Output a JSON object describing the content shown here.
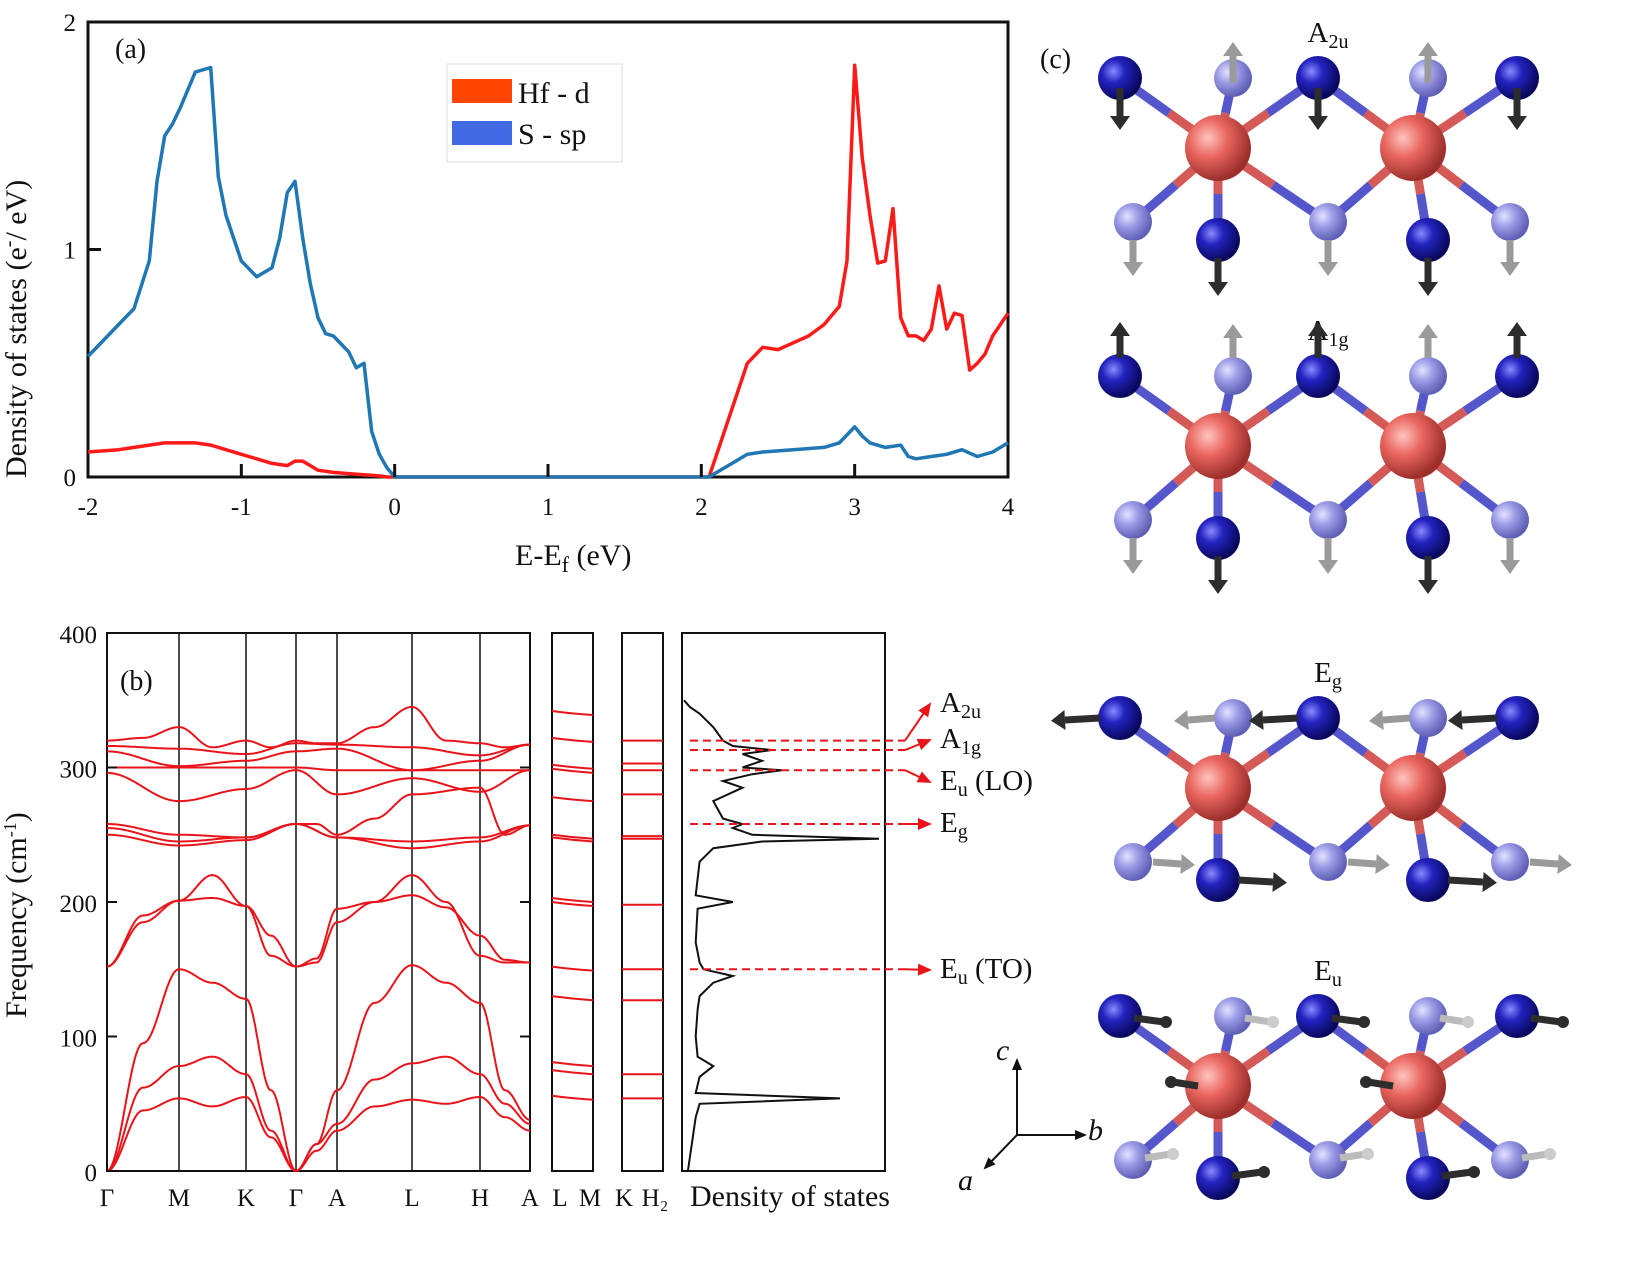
{
  "panel_a": {
    "label": "(a)",
    "xlabel": "E-E",
    "xlabel_sub": "f",
    "xlabel_unit": " (eV)",
    "ylabel": "Density of states (e",
    "ylabel_sup": "-",
    "ylabel_tail": "/ eV)",
    "legend": [
      {
        "name": "Hf - d",
        "color": "#ff4500"
      },
      {
        "name": "S - sp",
        "color": "#4169e1"
      }
    ]
  },
  "panel_b": {
    "label": "(b)",
    "ylabel": "Frequency (cm",
    "ylabel_sup": "-1",
    "ylabel_tail": ")",
    "kpoints": [
      "Γ",
      "M",
      "K",
      "Γ",
      "A",
      "L",
      "H",
      "A",
      "L",
      "M",
      "K",
      "H₂"
    ],
    "dos_label": "Density of states",
    "mode_labels": [
      {
        "base": "A",
        "sub": "2u",
        "tail": ""
      },
      {
        "base": "A",
        "sub": "1g",
        "tail": ""
      },
      {
        "base": "E",
        "sub": "u",
        "tail": " (LO)"
      },
      {
        "base": "E",
        "sub": "g",
        "tail": ""
      },
      {
        "base": "E",
        "sub": "u",
        "tail": " (TO)"
      }
    ]
  },
  "panel_c": {
    "label": "(c)",
    "modes": [
      {
        "base": "A",
        "sub": "2u"
      },
      {
        "base": "A",
        "sub": "1g"
      },
      {
        "base": "E",
        "sub": "g"
      },
      {
        "base": "E",
        "sub": "u"
      }
    ],
    "axes": {
      "c": "c",
      "b": "b",
      "a": "a"
    },
    "colors": {
      "hf_atom": "#e8605c",
      "s_atom": "#1a1aa8",
      "s_atom_back": "#8c8ce0",
      "arrow": "#2d2d2d"
    }
  },
  "chart_data": [
    {
      "type": "line",
      "title": "",
      "xlabel": "E-Ef (eV)",
      "ylabel": "Density of states (e-/ eV)",
      "xlim": [
        -2,
        4
      ],
      "ylim": [
        0,
        2
      ],
      "xticks": [
        -2,
        -1,
        0,
        1,
        2,
        3,
        4
      ],
      "yticks": [
        0,
        1,
        2
      ],
      "legend": "top-center",
      "series": [
        {
          "name": "Hf - d",
          "color": "#ff1a1a",
          "x": [
            -2.0,
            -1.8,
            -1.6,
            -1.5,
            -1.3,
            -1.2,
            -1.1,
            -1.0,
            -0.9,
            -0.8,
            -0.7,
            -0.65,
            -0.6,
            -0.55,
            -0.5,
            -0.4,
            -0.3,
            -0.2,
            -0.1,
            -0.05,
            2.05,
            2.1,
            2.2,
            2.3,
            2.4,
            2.5,
            2.6,
            2.7,
            2.8,
            2.9,
            2.95,
            3.0,
            3.05,
            3.1,
            3.15,
            3.2,
            3.25,
            3.3,
            3.35,
            3.4,
            3.45,
            3.5,
            3.55,
            3.6,
            3.65,
            3.7,
            3.75,
            3.8,
            3.85,
            3.9,
            3.95,
            4.0
          ],
          "y": [
            0.11,
            0.12,
            0.14,
            0.15,
            0.15,
            0.14,
            0.12,
            0.1,
            0.08,
            0.06,
            0.05,
            0.07,
            0.07,
            0.05,
            0.03,
            0.02,
            0.015,
            0.01,
            0.005,
            0.0,
            0.0,
            0.1,
            0.3,
            0.5,
            0.57,
            0.56,
            0.59,
            0.62,
            0.67,
            0.75,
            0.95,
            1.81,
            1.4,
            1.15,
            0.94,
            0.95,
            1.18,
            0.7,
            0.62,
            0.62,
            0.6,
            0.65,
            0.84,
            0.65,
            0.72,
            0.71,
            0.47,
            0.5,
            0.54,
            0.62,
            0.67,
            0.72
          ]
        },
        {
          "name": "S - sp",
          "color": "#1f77b4",
          "x": [
            -2.0,
            -1.9,
            -1.7,
            -1.6,
            -1.55,
            -1.5,
            -1.45,
            -1.4,
            -1.3,
            -1.2,
            -1.15,
            -1.1,
            -1.0,
            -0.9,
            -0.8,
            -0.75,
            -0.7,
            -0.65,
            -0.6,
            -0.55,
            -0.5,
            -0.45,
            -0.4,
            -0.3,
            -0.25,
            -0.2,
            -0.15,
            -0.1,
            -0.05,
            0.0,
            2.05,
            2.1,
            2.2,
            2.3,
            2.4,
            2.6,
            2.8,
            2.9,
            3.0,
            3.05,
            3.1,
            3.2,
            3.3,
            3.35,
            3.4,
            3.5,
            3.6,
            3.7,
            3.8,
            3.9,
            4.0
          ],
          "y": [
            0.53,
            0.6,
            0.74,
            0.95,
            1.3,
            1.5,
            1.55,
            1.62,
            1.78,
            1.8,
            1.32,
            1.15,
            0.95,
            0.88,
            0.92,
            1.05,
            1.25,
            1.3,
            1.05,
            0.85,
            0.7,
            0.63,
            0.62,
            0.55,
            0.48,
            0.5,
            0.2,
            0.1,
            0.04,
            0.0,
            0.0,
            0.02,
            0.06,
            0.1,
            0.11,
            0.12,
            0.13,
            0.15,
            0.22,
            0.18,
            0.15,
            0.13,
            0.14,
            0.09,
            0.08,
            0.09,
            0.1,
            0.12,
            0.09,
            0.11,
            0.15
          ]
        }
      ]
    },
    {
      "type": "line",
      "title": "",
      "xlabel": "",
      "ylabel": "Frequency (cm-1)",
      "ylim": [
        0,
        400
      ],
      "yticks": [
        0,
        100,
        200,
        300,
        400
      ],
      "categories": [
        "Γ",
        "M",
        "K",
        "Γ",
        "A",
        "L",
        "H",
        "A",
        "L",
        "M",
        "K",
        "H₂"
      ],
      "nodes": {
        "main": [
          {
            "label": "Γ",
            "path": 0
          },
          {
            "label": "M",
            "path": 1
          },
          {
            "label": "K",
            "path": 2
          },
          {
            "label": "Γ",
            "path": 3
          },
          {
            "label": "A",
            "path": 4
          },
          {
            "label": "L",
            "path": 5
          },
          {
            "label": "H",
            "path": 6
          },
          {
            "label": "A",
            "path": 7
          }
        ]
      },
      "bands_main": [
        {
          "k": [
            0,
            0.5,
            1,
            1.5,
            2,
            2.5,
            3,
            3.5,
            4,
            4.5,
            5,
            5.5,
            6,
            6.5,
            7
          ],
          "f": [
            0,
            95,
            150,
            140,
            128,
            60,
            0,
            20,
            60,
            125,
            153,
            140,
            125,
            60,
            38
          ]
        },
        {
          "k": [
            0,
            0.5,
            1,
            1.5,
            2,
            2.5,
            3,
            3.5,
            4,
            4.5,
            5,
            5.5,
            6,
            6.5,
            7
          ],
          "f": [
            0,
            62,
            78,
            85,
            72,
            30,
            0,
            20,
            35,
            68,
            80,
            85,
            72,
            50,
            35
          ]
        },
        {
          "k": [
            0,
            0.5,
            1,
            1.5,
            2,
            2.5,
            3,
            3.5,
            4,
            4.5,
            5,
            5.5,
            6,
            6.5,
            7
          ],
          "f": [
            0,
            45,
            54,
            48,
            55,
            25,
            0,
            15,
            30,
            48,
            53,
            50,
            55,
            40,
            30
          ]
        },
        {
          "k": [
            0,
            0.5,
            1,
            1.5,
            2,
            2.5,
            3,
            3.5,
            4,
            4.5,
            5,
            5.5,
            6,
            6.5,
            7
          ],
          "f": [
            152,
            185,
            201,
            220,
            197,
            160,
            152,
            155,
            185,
            200,
            220,
            200,
            160,
            155,
            155
          ]
        },
        {
          "k": [
            0,
            0.5,
            1,
            1.5,
            2,
            2.5,
            3,
            3.5,
            4,
            4.5,
            5,
            5.5,
            6,
            6.5,
            7
          ],
          "f": [
            152,
            190,
            201,
            203,
            197,
            175,
            152,
            158,
            195,
            200,
            205,
            196,
            175,
            157,
            155
          ]
        },
        {
          "k": [
            0,
            1,
            2,
            3,
            3.5,
            4,
            4.5,
            5,
            6,
            6.5,
            7
          ],
          "f": [
            258,
            250,
            248,
            258,
            258,
            250,
            262,
            280,
            285,
            250,
            257
          ]
        },
        {
          "k": [
            0,
            1,
            2,
            3,
            4,
            5,
            6,
            7
          ],
          "f": [
            255,
            245,
            248,
            258,
            248,
            245,
            248,
            257
          ]
        },
        {
          "k": [
            0,
            1,
            2,
            3,
            4,
            5,
            6,
            7
          ],
          "f": [
            250,
            242,
            246,
            258,
            248,
            240,
            245,
            257
          ]
        },
        {
          "k": [
            0,
            1,
            2,
            3,
            4,
            5,
            6,
            7
          ],
          "f": [
            296,
            275,
            284,
            298,
            280,
            292,
            282,
            298
          ]
        },
        {
          "k": [
            0,
            1,
            2,
            3,
            4,
            5,
            6,
            7
          ],
          "f": [
            300,
            300,
            300,
            300,
            298,
            298,
            298,
            298
          ]
        },
        {
          "k": [
            0,
            1,
            2,
            3,
            4,
            5,
            6,
            7
          ],
          "f": [
            312,
            301,
            305,
            312,
            314,
            298,
            305,
            317
          ]
        },
        {
          "k": [
            0,
            1,
            2,
            3,
            4,
            5,
            6,
            7
          ],
          "f": [
            316,
            314,
            310,
            318,
            317,
            315,
            309,
            317
          ]
        },
        {
          "k": [
            0,
            0.5,
            1,
            1.5,
            2,
            2.5,
            3,
            3.5,
            4,
            4.5,
            5,
            5.5,
            6,
            6.5,
            7
          ],
          "f": [
            320,
            322,
            330,
            315,
            320,
            315,
            320,
            318,
            318,
            330,
            345,
            320,
            318,
            315,
            317
          ]
        }
      ],
      "bands_LM": [
        54,
        73,
        79,
        128,
        150,
        198,
        201,
        246,
        248,
        276,
        297,
        300,
        320,
        340
      ],
      "bands_KH": [
        54,
        72,
        127,
        150,
        198,
        247,
        249,
        280,
        298,
        303,
        320
      ],
      "dos_phonon": {
        "f": [
          0,
          20,
          40,
          50,
          54,
          58,
          70,
          78,
          85,
          100,
          120,
          130,
          140,
          145,
          150,
          155,
          170,
          195,
          200,
          205,
          230,
          240,
          245,
          247,
          250,
          255,
          258,
          262,
          275,
          285,
          290,
          295,
          298,
          300,
          305,
          310,
          313,
          316,
          320,
          330,
          340,
          345,
          350
        ],
        "d": [
          0.02,
          0.04,
          0.06,
          0.08,
          0.8,
          0.06,
          0.08,
          0.15,
          0.07,
          0.06,
          0.07,
          0.08,
          0.15,
          0.25,
          0.1,
          0.08,
          0.06,
          0.07,
          0.25,
          0.06,
          0.08,
          0.15,
          0.4,
          1.0,
          0.35,
          0.25,
          0.3,
          0.2,
          0.15,
          0.3,
          0.2,
          0.35,
          0.5,
          0.3,
          0.4,
          0.3,
          0.45,
          0.25,
          0.2,
          0.15,
          0.08,
          0.03,
          0.0
        ]
      },
      "mode_markers": [
        {
          "label": "A2u",
          "freq": 320
        },
        {
          "label": "A1g",
          "freq": 313
        },
        {
          "label": "Eu (LO)",
          "freq": 298
        },
        {
          "label": "Eg",
          "freq": 258
        },
        {
          "label": "Eu (TO)",
          "freq": 150
        }
      ]
    }
  ]
}
